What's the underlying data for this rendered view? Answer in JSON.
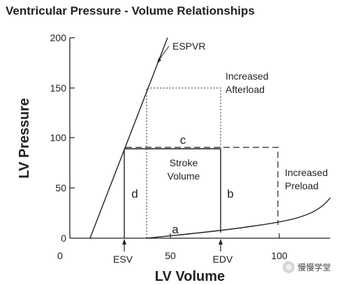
{
  "diagram": {
    "title": "Ventricular Pressure - Volume Relationships",
    "xlabel": "LV Volume",
    "ylabel": "LV Pressure",
    "y_ticks": [
      "0",
      "50",
      "100",
      "150",
      "200"
    ],
    "x_ticks": [
      "0",
      "50",
      "100"
    ],
    "labels": {
      "espvr": "ESPVR",
      "increased_afterload": [
        "Increased",
        "Afterload"
      ],
      "increased_preload": [
        "Increased",
        "Preload"
      ],
      "stroke_volume": [
        "Stroke",
        "Volume"
      ],
      "a": "a",
      "b": "b",
      "c": "c",
      "d": "d",
      "esv": "ESV",
      "edv": "EDV"
    }
  },
  "watermark": {
    "text": "慢慢学堂",
    "icon": "wechat-logo-icon"
  },
  "colors": {
    "line": "#222222",
    "text": "#222222"
  }
}
